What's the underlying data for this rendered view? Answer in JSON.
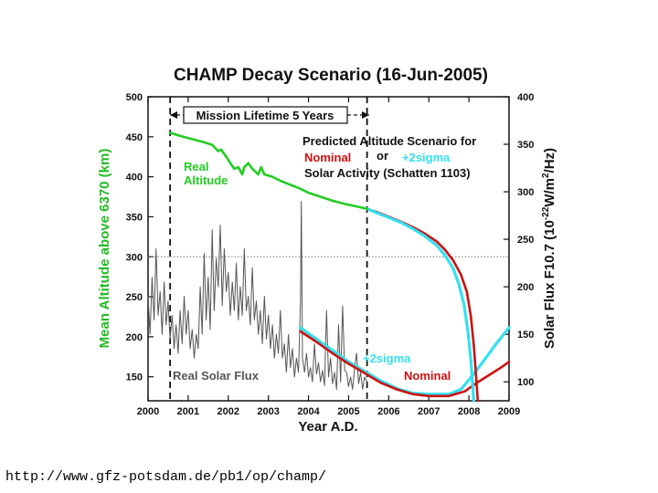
{
  "source_url": "http://www.gfz-potsdam.de/pb1/op/champ/",
  "chart_data": {
    "type": "line",
    "title": "CHAMP Decay Scenario (16-Jun-2005)",
    "xlabel": "Year A.D.",
    "ylabel": "Mean Altitude above 6370 (km)",
    "ylabel_right": {
      "pre": "Solar Flux F10.7 (10",
      "exp1": "-22",
      "mid": "W/m",
      "exp2": "2",
      "post": "/Hz)"
    },
    "xlim": [
      2000,
      2009
    ],
    "ylim": [
      120,
      500
    ],
    "ylim_right": [
      80,
      400
    ],
    "x_ticks": [
      "2000",
      "2001",
      "2002",
      "2003",
      "2004",
      "2005",
      "2006",
      "2007",
      "2008",
      "2009"
    ],
    "y_ticks_left": [
      "500",
      "450",
      "400",
      "350",
      "300",
      "250",
      "200",
      "150"
    ],
    "y_ticks_right": [
      "400",
      "350",
      "300",
      "250",
      "200",
      "150",
      "100"
    ],
    "colors": {
      "green": "#22cc22",
      "cyan": "#33e0f0",
      "red": "#cc1111",
      "gray": "#555555",
      "black": "#111111"
    },
    "annotations": {
      "mission_lifetime": "Mission Lifetime 5 Years",
      "predicted_line1": "Predicted Altitude Scenario for",
      "nominal": "Nominal",
      "or": "or",
      "plus2sigma": "+2sigma",
      "predicted_line3": "Solar Activity (Schatten 1103)",
      "real_altitude_1": "Real",
      "real_altitude_2": "Altitude",
      "flux_plus2sigma": "+2sigma",
      "flux_nominal": "Nominal",
      "real_solar_flux": "Real Solar Flux"
    },
    "markers": {
      "launch_year": 2000.55,
      "prediction_start_year": 2005.46
    },
    "reference_altitude_km": 300,
    "series": [
      {
        "name": "Real Altitude",
        "axis": "left",
        "color_key": "green",
        "x": [
          2000.55,
          2000.8,
          2001.1,
          2001.4,
          2001.6,
          2001.75,
          2001.82,
          2001.95,
          2002.05,
          2002.15,
          2002.25,
          2002.35,
          2002.4,
          2002.5,
          2002.6,
          2002.75,
          2002.82,
          2002.9,
          2003.1,
          2003.3,
          2003.55,
          2003.8,
          2004.0,
          2004.3,
          2004.6,
          2004.9,
          2005.2,
          2005.46
        ],
        "y": [
          455,
          451,
          447,
          443,
          440,
          432,
          434,
          425,
          417,
          410,
          412,
          403,
          412,
          417,
          410,
          403,
          412,
          403,
          400,
          395,
          390,
          385,
          380,
          375,
          370,
          366,
          363,
          360
        ]
      },
      {
        "name": "Predicted Altitude (Nominal)",
        "axis": "left",
        "color_key": "red",
        "x": [
          2005.46,
          2005.7,
          2006.0,
          2006.3,
          2006.6,
          2006.9,
          2007.2,
          2007.4,
          2007.6,
          2007.8,
          2007.95,
          2008.05,
          2008.12,
          2008.18,
          2008.22
        ],
        "y": [
          360,
          356,
          350,
          344,
          337,
          329,
          319,
          309,
          296,
          278,
          256,
          225,
          190,
          150,
          120
        ]
      },
      {
        "name": "Predicted Altitude (+2sigma)",
        "axis": "left",
        "color_key": "cyan",
        "x": [
          2005.46,
          2005.7,
          2006.0,
          2006.3,
          2006.6,
          2006.9,
          2007.2,
          2007.4,
          2007.6,
          2007.75,
          2007.88,
          2007.98,
          2008.05,
          2008.1,
          2008.12
        ],
        "y": [
          360,
          355,
          349,
          343,
          335,
          326,
          314,
          302,
          286,
          266,
          240,
          205,
          170,
          135,
          120
        ]
      },
      {
        "name": "Solar Flux Prediction (Nominal)",
        "axis": "right",
        "color_key": "red",
        "x": [
          2003.8,
          2004.2,
          2004.6,
          2005.0,
          2005.4,
          2005.8,
          2006.2,
          2006.6,
          2007.0,
          2007.5,
          2007.9,
          2008.2,
          2008.5,
          2008.8,
          2009.0
        ],
        "y": [
          153,
          142,
          130,
          119,
          109,
          99,
          92,
          87,
          85,
          85,
          90,
          99,
          107,
          115,
          121
        ]
      },
      {
        "name": "Solar Flux Prediction (+2sigma)",
        "axis": "right",
        "color_key": "cyan",
        "x": [
          2003.8,
          2004.2,
          2004.6,
          2005.0,
          2005.4,
          2005.8,
          2006.2,
          2006.6,
          2007.0,
          2007.5,
          2007.8,
          2008.1,
          2008.4,
          2008.7,
          2009.0
        ],
        "y": [
          157,
          145,
          133,
          121,
          111,
          101,
          93,
          88,
          87,
          87,
          92,
          107,
          124,
          141,
          157
        ]
      },
      {
        "name": "Real Solar Flux",
        "axis": "right",
        "color_key": "gray",
        "x": [
          2000.0,
          2000.05,
          2000.1,
          2000.15,
          2000.2,
          2000.25,
          2000.3,
          2000.35,
          2000.4,
          2000.45,
          2000.5,
          2000.55,
          2000.6,
          2000.65,
          2000.7,
          2000.75,
          2000.8,
          2000.85,
          2000.9,
          2000.95,
          2001.0,
          2001.05,
          2001.1,
          2001.15,
          2001.2,
          2001.25,
          2001.3,
          2001.35,
          2001.4,
          2001.45,
          2001.5,
          2001.55,
          2001.6,
          2001.65,
          2001.7,
          2001.75,
          2001.8,
          2001.85,
          2001.9,
          2001.95,
          2002.0,
          2002.05,
          2002.1,
          2002.15,
          2002.2,
          2002.25,
          2002.3,
          2002.35,
          2002.4,
          2002.45,
          2002.5,
          2002.55,
          2002.6,
          2002.65,
          2002.7,
          2002.75,
          2002.8,
          2002.85,
          2002.9,
          2002.95,
          2003.0,
          2003.05,
          2003.1,
          2003.15,
          2003.2,
          2003.25,
          2003.3,
          2003.35,
          2003.4,
          2003.45,
          2003.5,
          2003.55,
          2003.6,
          2003.65,
          2003.7,
          2003.75,
          2003.8,
          2003.82,
          2003.85,
          2003.9,
          2003.95,
          2004.0,
          2004.05,
          2004.1,
          2004.15,
          2004.2,
          2004.25,
          2004.3,
          2004.35,
          2004.4,
          2004.45,
          2004.5,
          2004.55,
          2004.6,
          2004.65,
          2004.7,
          2004.75,
          2004.8,
          2004.85,
          2004.9,
          2004.95,
          2005.0,
          2005.05,
          2005.1,
          2005.15,
          2005.2,
          2005.25,
          2005.3,
          2005.35,
          2005.4,
          2005.46
        ],
        "y": [
          190,
          150,
          210,
          165,
          240,
          170,
          195,
          150,
          205,
          160,
          185,
          145,
          170,
          135,
          160,
          130,
          175,
          140,
          190,
          150,
          175,
          135,
          155,
          125,
          150,
          135,
          200,
          150,
          235,
          165,
          210,
          155,
          260,
          175,
          230,
          200,
          265,
          180,
          240,
          195,
          215,
          170,
          205,
          175,
          225,
          165,
          200,
          170,
          240,
          175,
          190,
          160,
          220,
          165,
          185,
          150,
          175,
          140,
          190,
          145,
          170,
          135,
          160,
          125,
          150,
          130,
          175,
          125,
          140,
          110,
          150,
          115,
          135,
          105,
          125,
          110,
          185,
          290,
          125,
          110,
          130,
          105,
          115,
          100,
          140,
          108,
          120,
          100,
          112,
          96,
          175,
          105,
          125,
          98,
          110,
          92,
          160,
          100,
          180,
          112,
          110,
          95,
          105,
          92,
          115,
          130,
          98,
          110,
          92,
          105,
          100
        ]
      }
    ]
  }
}
